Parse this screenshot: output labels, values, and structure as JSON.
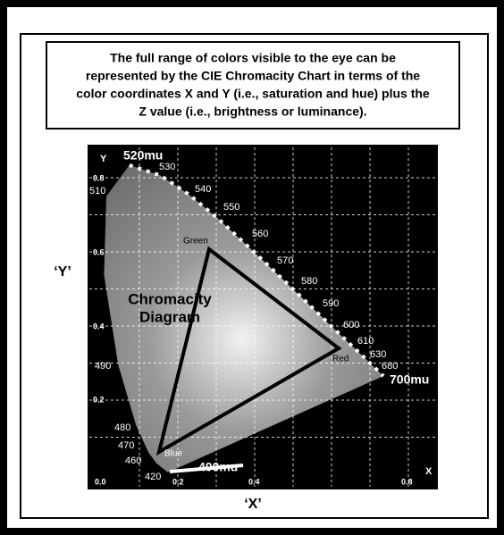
{
  "caption": [
    "The full range of colors visible to the eye can be",
    "represented by the CIE Chromacity Chart in terms of the",
    "color coordinates X and Y (i.e., saturation and hue) plus the",
    "Z value (i.e., brightness or luminance)."
  ],
  "axis_labels": {
    "y": "‘Y’",
    "x": "‘X’"
  },
  "plot": {
    "y_axis_name": "Y",
    "x_axis_name": "X",
    "y_ticks": [
      "0.8",
      "0.6",
      "0.4",
      "0.2"
    ],
    "x_ticks": [
      "0.0",
      "0.2",
      "0.4",
      "0.8"
    ],
    "wavelengths": [
      "520mu",
      "530",
      "540",
      "550",
      "560",
      "570",
      "580",
      "590",
      "600",
      "610",
      "630",
      "680",
      "700mu",
      "510",
      "490",
      "480",
      "470",
      "460",
      "420",
      "400mu"
    ],
    "vertices": [
      "Green",
      "Red",
      "Blue"
    ],
    "region_label": [
      "Chromacity",
      "Diagram"
    ]
  }
}
